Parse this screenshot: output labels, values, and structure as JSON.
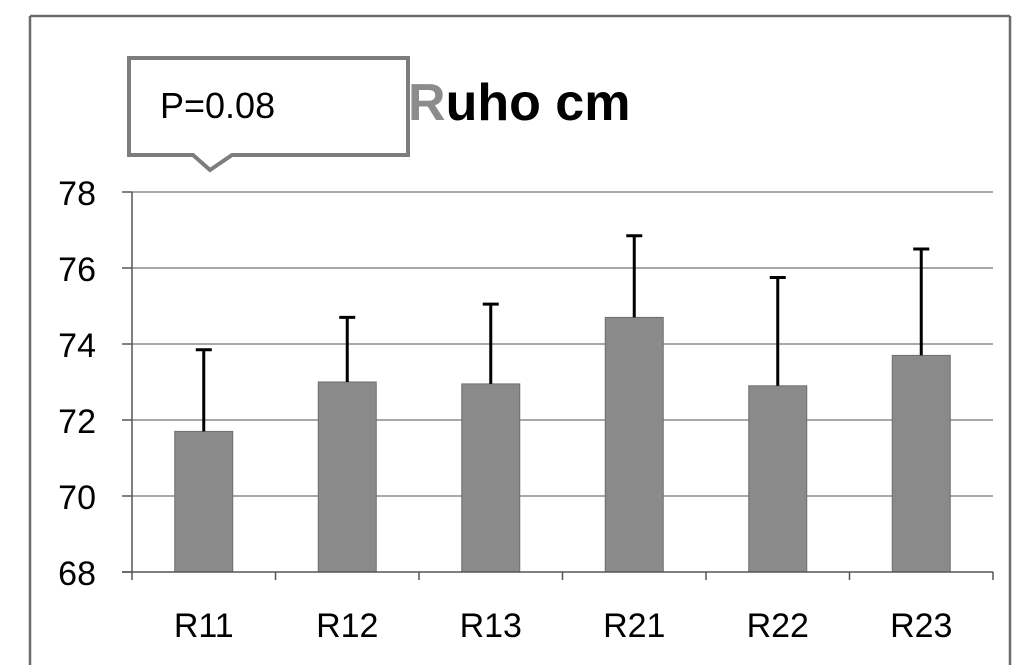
{
  "colors": {
    "bar": "#8a8a8a",
    "bar_edge": "#6e6e6e",
    "grid": "#8c8c8c",
    "axis": "#555555",
    "error_bar": "#000000",
    "frame": "#6b6b6b",
    "callout_border": "#7d7d7d",
    "title_first_letter": "#8c8c8c",
    "title_rest": "#000000",
    "text": "#000000"
  },
  "callout": {
    "text": "P=0.08"
  },
  "chart_data": {
    "type": "bar",
    "title": "Ruho cm",
    "title_first_letter": "R",
    "title_rest": "uho cm",
    "xlabel": "",
    "ylabel": "",
    "categories": [
      "R11",
      "R12",
      "R13",
      "R21",
      "R22",
      "R23"
    ],
    "values": [
      71.7,
      73.0,
      72.95,
      74.7,
      72.9,
      73.7
    ],
    "error_upper": [
      73.85,
      74.7,
      75.05,
      76.85,
      75.75,
      76.5
    ],
    "ylim": [
      68,
      78
    ],
    "yticks": [
      68,
      70,
      72,
      74,
      76,
      78
    ],
    "grid": true,
    "legend": "none"
  }
}
